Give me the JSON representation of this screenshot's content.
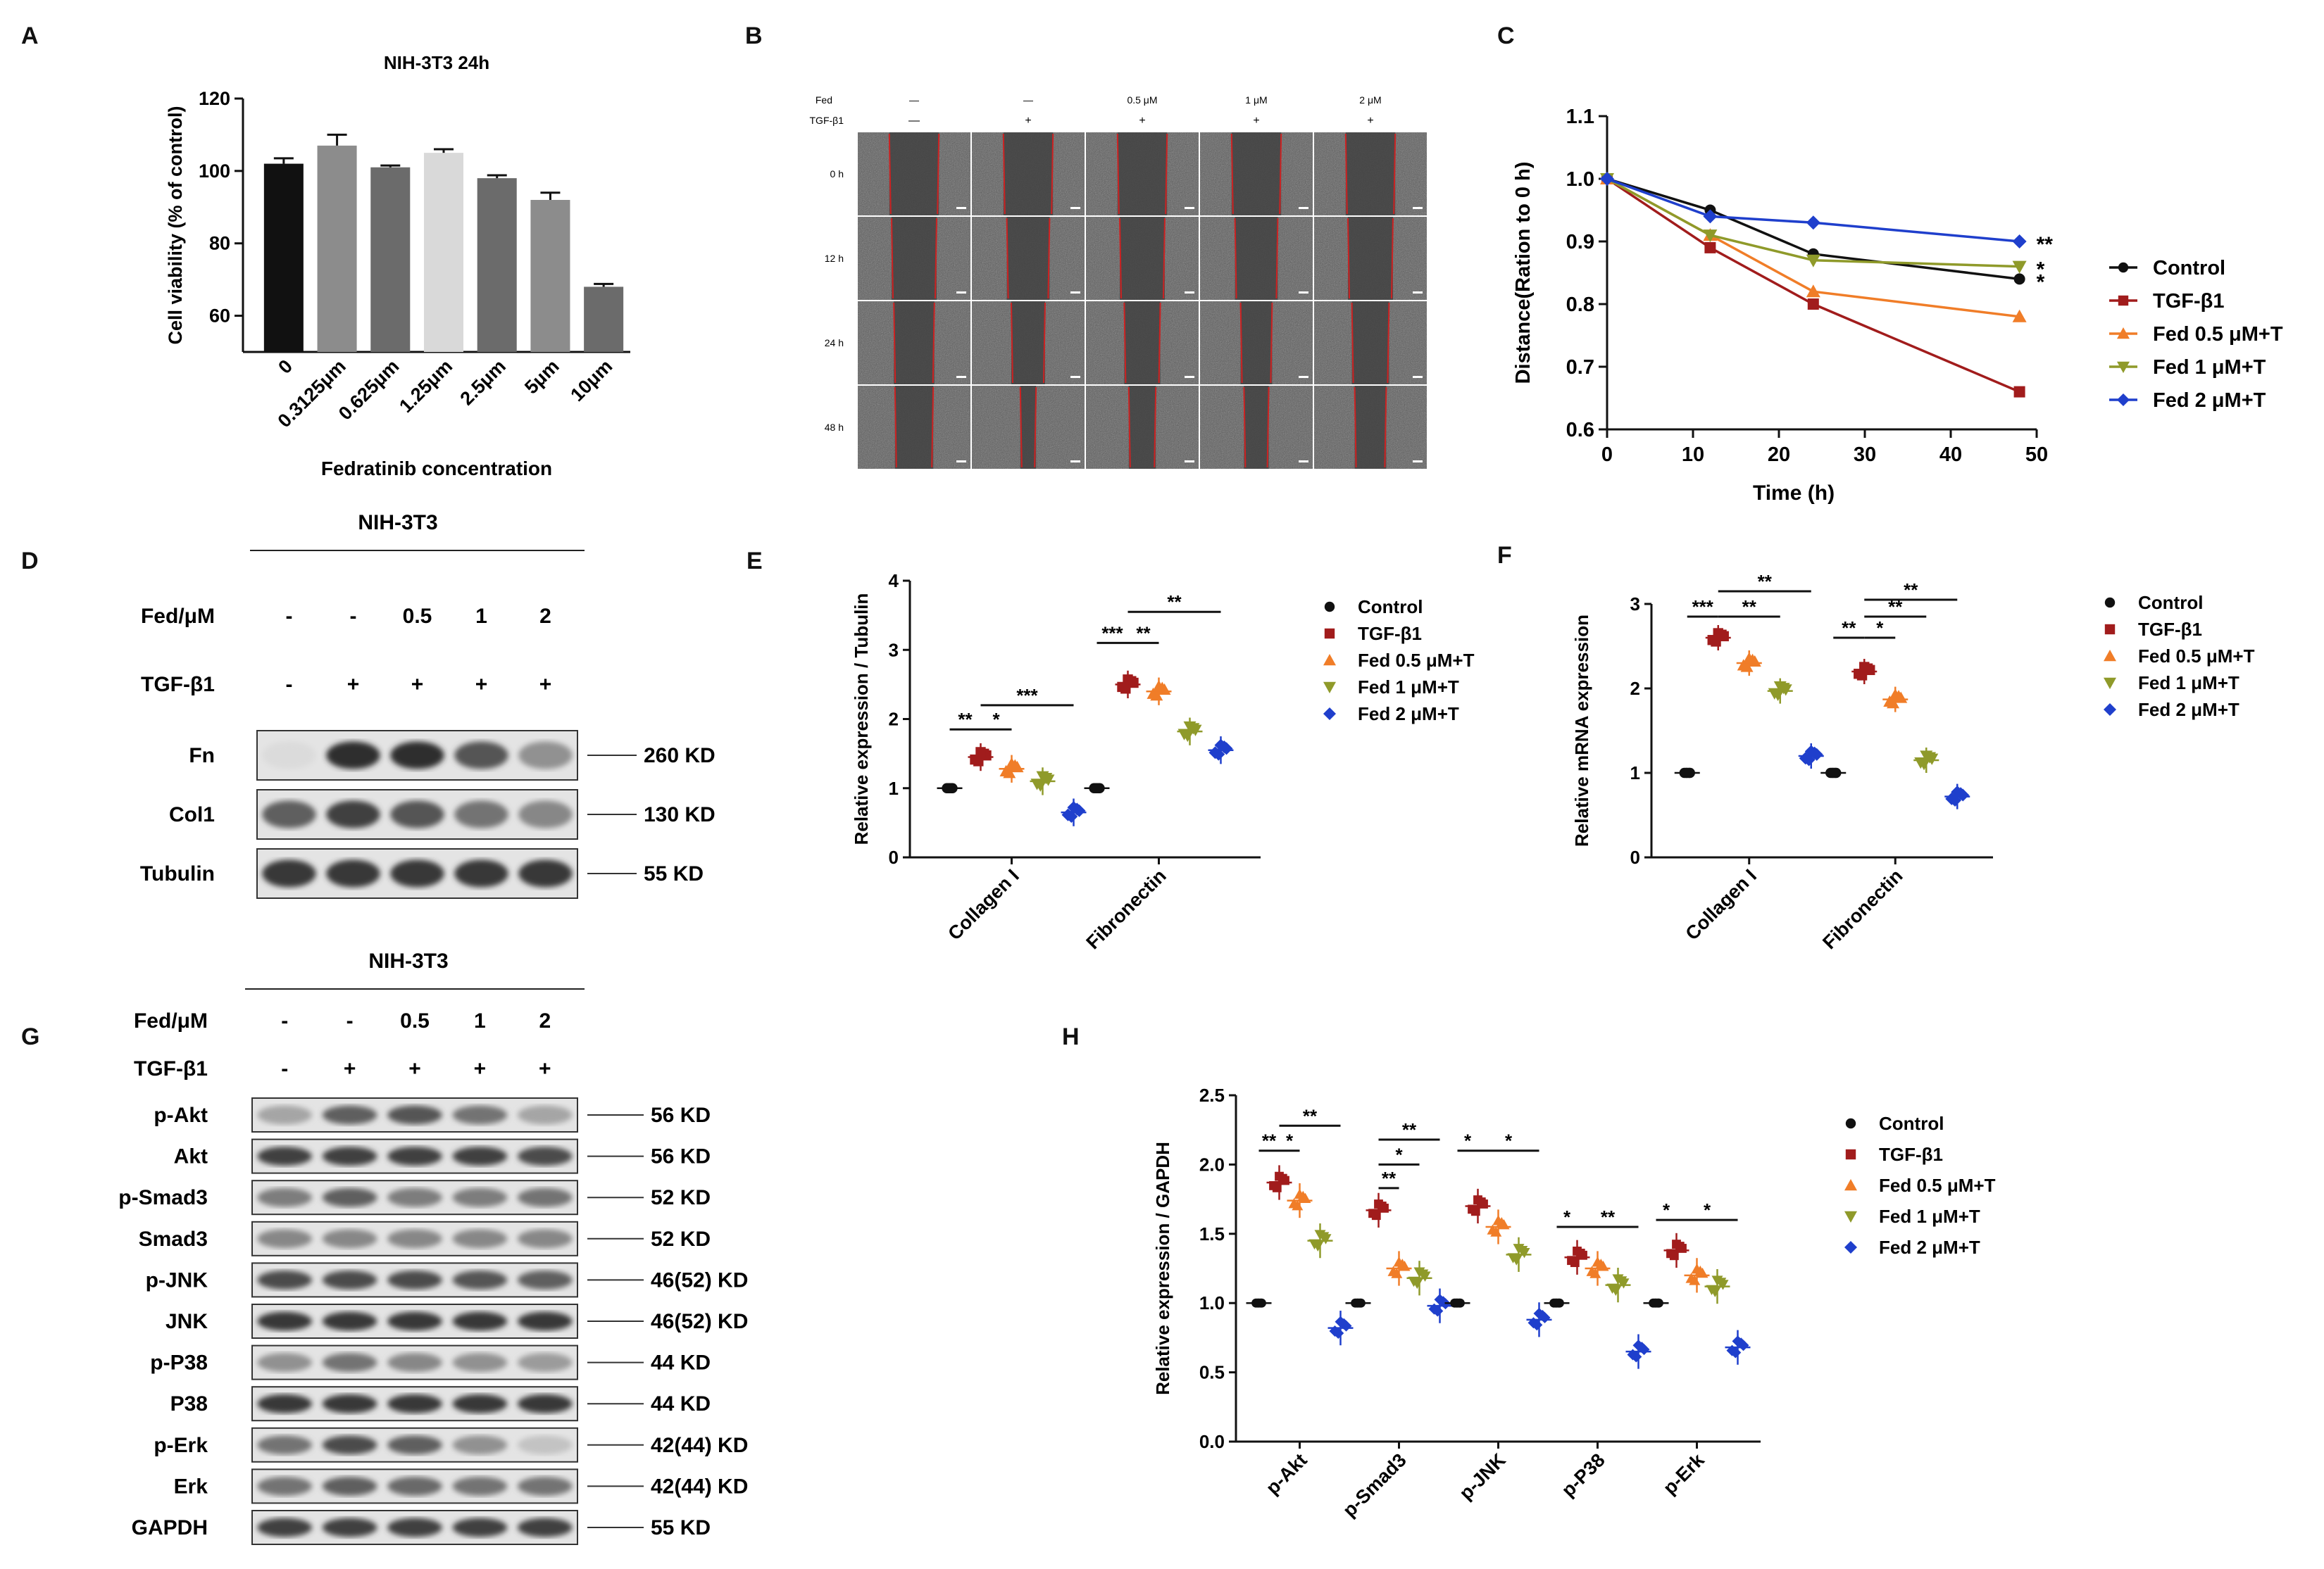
{
  "panel_letters": [
    "A",
    "B",
    "C",
    "D",
    "E",
    "F",
    "G",
    "H"
  ],
  "colors": {
    "black": "#111111",
    "gray_dark": "#6b6b6b",
    "gray_mid": "#8c8c8c",
    "gray_light": "#d9d9d9",
    "control": "#111111",
    "tgf": "#a11c1c",
    "fed05": "#f07d28",
    "fed1": "#8f9a2a",
    "fed2": "#1f3fcc",
    "scratch_line": "#cc2222"
  },
  "legend_series": [
    "Control",
    "TGF-β1",
    "Fed 0.5 μM+T",
    "Fed 1 μM+T",
    "Fed 2 μM+T"
  ],
  "chart_data": [
    {
      "panel": "A",
      "type": "bar",
      "title": "NIH-3T3 24h",
      "xlabel": "Fedratinib concentration",
      "ylabel": "Cell viability (% of control)",
      "ylim": [
        50,
        120
      ],
      "yticks": [
        60,
        80,
        100,
        120
      ],
      "categories": [
        "0",
        "0.3125μm",
        "0.625μm",
        "1.25μm",
        "2.5μm",
        "5μm",
        "10μm"
      ],
      "values": [
        102,
        107,
        101,
        105,
        98,
        92,
        68
      ],
      "errors": [
        1.5,
        3,
        0.5,
        1,
        0.8,
        2,
        0.8
      ]
    },
    {
      "panel": "C",
      "type": "line",
      "title": "",
      "xlabel": "Time (h)",
      "ylabel": "Distance(Ration to 0 h)",
      "xlim": [
        0,
        50
      ],
      "ylim": [
        0.6,
        1.1
      ],
      "xticks": [
        0,
        10,
        20,
        30,
        40,
        50
      ],
      "yticks": [
        0.6,
        0.7,
        0.8,
        0.9,
        1.0,
        1.1
      ],
      "x": [
        0,
        12,
        24,
        48
      ],
      "series": [
        {
          "name": "Control",
          "values": [
            1.0,
            0.95,
            0.88,
            0.84
          ],
          "sig": "*"
        },
        {
          "name": "TGF-β1",
          "values": [
            1.0,
            0.89,
            0.8,
            0.66
          ],
          "sig": ""
        },
        {
          "name": "Fed 0.5 μM+T",
          "values": [
            1.0,
            0.91,
            0.82,
            0.78
          ],
          "sig": ""
        },
        {
          "name": "Fed 1 μM+T",
          "values": [
            1.0,
            0.91,
            0.87,
            0.86
          ],
          "sig": "*"
        },
        {
          "name": "Fed 2 μM+T",
          "values": [
            1.0,
            0.94,
            0.93,
            0.9
          ],
          "sig": "**"
        }
      ]
    },
    {
      "panel": "E",
      "type": "scatter",
      "ylabel": "Relative expression / Tubulin",
      "ylim": [
        0,
        4
      ],
      "yticks": [
        0,
        1,
        2,
        3,
        4
      ],
      "categories": [
        "Collagen I",
        "Fibronectin"
      ],
      "series": [
        {
          "name": "Control",
          "means": [
            1.0,
            1.0
          ]
        },
        {
          "name": "TGF-β1",
          "means": [
            1.45,
            2.5
          ]
        },
        {
          "name": "Fed 0.5 μM+T",
          "means": [
            1.28,
            2.4
          ]
        },
        {
          "name": "Fed 1 μM+T",
          "means": [
            1.1,
            1.82
          ]
        },
        {
          "name": "Fed 2 μM+T",
          "means": [
            0.65,
            1.55
          ]
        }
      ],
      "brackets": [
        {
          "cat": 0,
          "a": 0,
          "b": 1,
          "y": 1.85,
          "label": "**"
        },
        {
          "cat": 0,
          "a": 1,
          "b": 2,
          "y": 1.85,
          "label": "*"
        },
        {
          "cat": 0,
          "a": 1,
          "b": 4,
          "y": 2.2,
          "label": "***"
        },
        {
          "cat": 1,
          "a": 0,
          "b": 1,
          "y": 3.1,
          "label": "***"
        },
        {
          "cat": 1,
          "a": 1,
          "b": 2,
          "y": 3.1,
          "label": "**"
        },
        {
          "cat": 1,
          "a": 1,
          "b": 4,
          "y": 3.55,
          "label": "**"
        }
      ]
    },
    {
      "panel": "F",
      "type": "scatter",
      "ylabel": "Relative mRNA expression",
      "ylim": [
        0,
        3
      ],
      "yticks": [
        0,
        1,
        2,
        3
      ],
      "categories": [
        "Collagen I",
        "Fibronectin"
      ],
      "series": [
        {
          "name": "Control",
          "means": [
            1.0,
            1.0
          ]
        },
        {
          "name": "TGF-β1",
          "means": [
            2.6,
            2.2
          ]
        },
        {
          "name": "Fed 0.5 μM+T",
          "means": [
            2.3,
            1.87
          ]
        },
        {
          "name": "Fed 1 μM+T",
          "means": [
            1.97,
            1.15
          ]
        },
        {
          "name": "Fed 2 μM+T",
          "means": [
            1.2,
            0.72
          ]
        }
      ],
      "brackets": [
        {
          "cat": 0,
          "a": 0,
          "b": 1,
          "y": 2.85,
          "label": "***"
        },
        {
          "cat": 0,
          "a": 1,
          "b": 3,
          "y": 2.85,
          "label": "**"
        },
        {
          "cat": 0,
          "a": 1,
          "b": 4,
          "y": 3.15,
          "label": "**"
        },
        {
          "cat": 1,
          "a": 0,
          "b": 1,
          "y": 2.6,
          "label": "**"
        },
        {
          "cat": 1,
          "a": 1,
          "b": 2,
          "y": 2.6,
          "label": "*"
        },
        {
          "cat": 1,
          "a": 1,
          "b": 3,
          "y": 2.85,
          "label": "**"
        },
        {
          "cat": 1,
          "a": 1,
          "b": 4,
          "y": 3.05,
          "label": "**"
        }
      ]
    },
    {
      "panel": "H",
      "type": "scatter",
      "ylabel": "Relative expression / GAPDH",
      "ylim": [
        0,
        2.5
      ],
      "yticks": [
        0.0,
        0.5,
        1.0,
        1.5,
        2.0,
        2.5
      ],
      "categories": [
        "p-Akt",
        "p-Smad3",
        "p-JNK",
        "p-P38",
        "p-Erk"
      ],
      "series": [
        {
          "name": "Control",
          "means": [
            1.0,
            1.0,
            1.0,
            1.0,
            1.0
          ]
        },
        {
          "name": "TGF-β1",
          "means": [
            1.87,
            1.67,
            1.7,
            1.33,
            1.38
          ]
        },
        {
          "name": "Fed 0.5 μM+T",
          "means": [
            1.74,
            1.25,
            1.55,
            1.25,
            1.2
          ]
        },
        {
          "name": "Fed 1 μM+T",
          "means": [
            1.45,
            1.18,
            1.35,
            1.13,
            1.12
          ]
        },
        {
          "name": "Fed 2 μM+T",
          "means": [
            0.82,
            0.98,
            0.88,
            0.65,
            0.68
          ]
        }
      ],
      "brackets": [
        {
          "cat": 0,
          "a": 0,
          "b": 1,
          "y": 2.1,
          "label": "**"
        },
        {
          "cat": 0,
          "a": 1,
          "b": 2,
          "y": 2.1,
          "label": "*"
        },
        {
          "cat": 0,
          "a": 1,
          "b": 4,
          "y": 2.28,
          "label": "**"
        },
        {
          "cat": 1,
          "a": 1,
          "b": 2,
          "y": 1.83,
          "label": "**"
        },
        {
          "cat": 1,
          "a": 1,
          "b": 3,
          "y": 2.0,
          "label": "*"
        },
        {
          "cat": 1,
          "a": 1,
          "b": 4,
          "y": 2.18,
          "label": "**"
        },
        {
          "cat": 2,
          "a": 0,
          "b": 1,
          "y": 2.1,
          "label": "*"
        },
        {
          "cat": 2,
          "a": 1,
          "b": 4,
          "y": 2.1,
          "label": "*"
        },
        {
          "cat": 3,
          "a": 0,
          "b": 1,
          "y": 1.55,
          "label": "*"
        },
        {
          "cat": 3,
          "a": 1,
          "b": 4,
          "y": 1.55,
          "label": "**"
        },
        {
          "cat": 4,
          "a": 0,
          "b": 1,
          "y": 1.6,
          "label": "*"
        },
        {
          "cat": 4,
          "a": 1,
          "b": 4,
          "y": 1.6,
          "label": "*"
        }
      ]
    }
  ],
  "panel_b": {
    "row_fed_label": "Fed",
    "row_tgf_label": "TGF-β1",
    "fed": [
      "—",
      "—",
      "0.5 μM",
      "1 μM",
      "2 μM"
    ],
    "tgf": [
      "—",
      "+",
      "+",
      "+",
      "+"
    ],
    "timepoints": [
      "0 h",
      "12 h",
      "24 h",
      "48 h"
    ]
  },
  "panel_d": {
    "title": "NIH-3T3",
    "fed_label": "Fed/μM",
    "tgf_label": "TGF-β1",
    "fed": [
      "-",
      "-",
      "0.5",
      "1",
      "2"
    ],
    "tgf": [
      "-",
      "+",
      "+",
      "+",
      "+"
    ],
    "bands": [
      {
        "name": "Fn",
        "size": "260 KD",
        "intensity": [
          0.08,
          0.95,
          0.95,
          0.75,
          0.45
        ]
      },
      {
        "name": "Col1",
        "size": "130 KD",
        "intensity": [
          0.7,
          0.85,
          0.75,
          0.6,
          0.5
        ]
      },
      {
        "name": "Tubulin",
        "size": "55 KD",
        "intensity": [
          0.9,
          0.9,
          0.9,
          0.9,
          0.9
        ]
      }
    ]
  },
  "panel_g": {
    "title": "NIH-3T3",
    "fed_label": "Fed/μM",
    "tgf_label": "TGF-β1",
    "fed": [
      "-",
      "-",
      "0.5",
      "1",
      "2"
    ],
    "tgf": [
      "-",
      "+",
      "+",
      "+",
      "+"
    ],
    "bands": [
      {
        "name": "p-Akt",
        "size": "56 KD",
        "intensity": [
          0.35,
          0.7,
          0.75,
          0.6,
          0.35
        ]
      },
      {
        "name": "Akt",
        "size": "56 KD",
        "intensity": [
          0.85,
          0.85,
          0.85,
          0.85,
          0.8
        ]
      },
      {
        "name": "p-Smad3",
        "size": "52 KD",
        "intensity": [
          0.55,
          0.7,
          0.55,
          0.55,
          0.6
        ]
      },
      {
        "name": "Smad3",
        "size": "52 KD",
        "intensity": [
          0.5,
          0.5,
          0.5,
          0.5,
          0.5
        ]
      },
      {
        "name": "p-JNK",
        "size": "46(52) KD",
        "intensity": [
          0.8,
          0.8,
          0.8,
          0.75,
          0.7
        ]
      },
      {
        "name": "JNK",
        "size": "46(52) KD",
        "intensity": [
          0.9,
          0.9,
          0.9,
          0.9,
          0.9
        ]
      },
      {
        "name": "p-P38",
        "size": "44 KD",
        "intensity": [
          0.45,
          0.6,
          0.5,
          0.45,
          0.4
        ]
      },
      {
        "name": "P38",
        "size": "44 KD",
        "intensity": [
          0.9,
          0.9,
          0.9,
          0.9,
          0.9
        ]
      },
      {
        "name": "p-Erk",
        "size": "42(44) KD",
        "intensity": [
          0.6,
          0.8,
          0.7,
          0.45,
          0.2
        ]
      },
      {
        "name": "Erk",
        "size": "42(44) KD",
        "intensity": [
          0.6,
          0.7,
          0.65,
          0.6,
          0.6
        ]
      },
      {
        "name": "GAPDH",
        "size": "55 KD",
        "intensity": [
          0.85,
          0.85,
          0.85,
          0.85,
          0.85
        ]
      }
    ]
  }
}
